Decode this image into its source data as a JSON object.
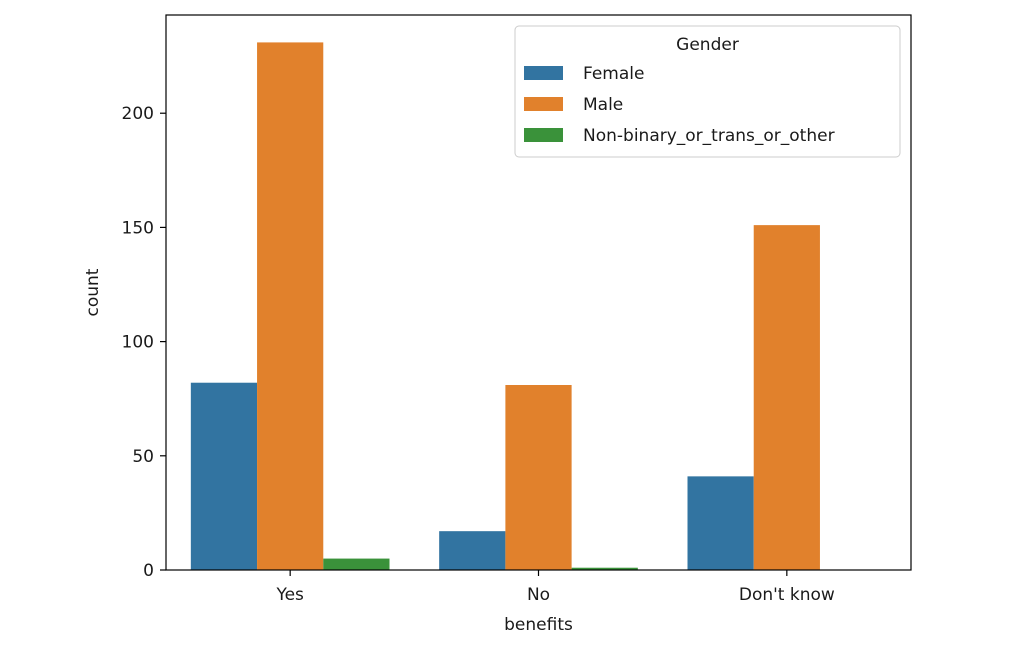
{
  "chart_data": {
    "type": "bar",
    "categories": [
      "Yes",
      "No",
      "Don't know"
    ],
    "series": [
      {
        "name": "Female",
        "values": [
          82,
          17,
          41
        ]
      },
      {
        "name": "Male",
        "values": [
          231,
          81,
          151
        ]
      },
      {
        "name": "Non-binary_or_trans_or_other",
        "values": [
          5,
          1,
          0
        ]
      }
    ],
    "colors": [
      "#3274a1",
      "#e1812c",
      "#3a923a"
    ],
    "xlabel": "benefits",
    "ylabel": "count",
    "yticks": [
      0,
      50,
      100,
      150,
      200
    ],
    "ylim": [
      0,
      243
    ],
    "legend": {
      "title": "Gender",
      "placement": "top-right"
    },
    "grid": false
  }
}
